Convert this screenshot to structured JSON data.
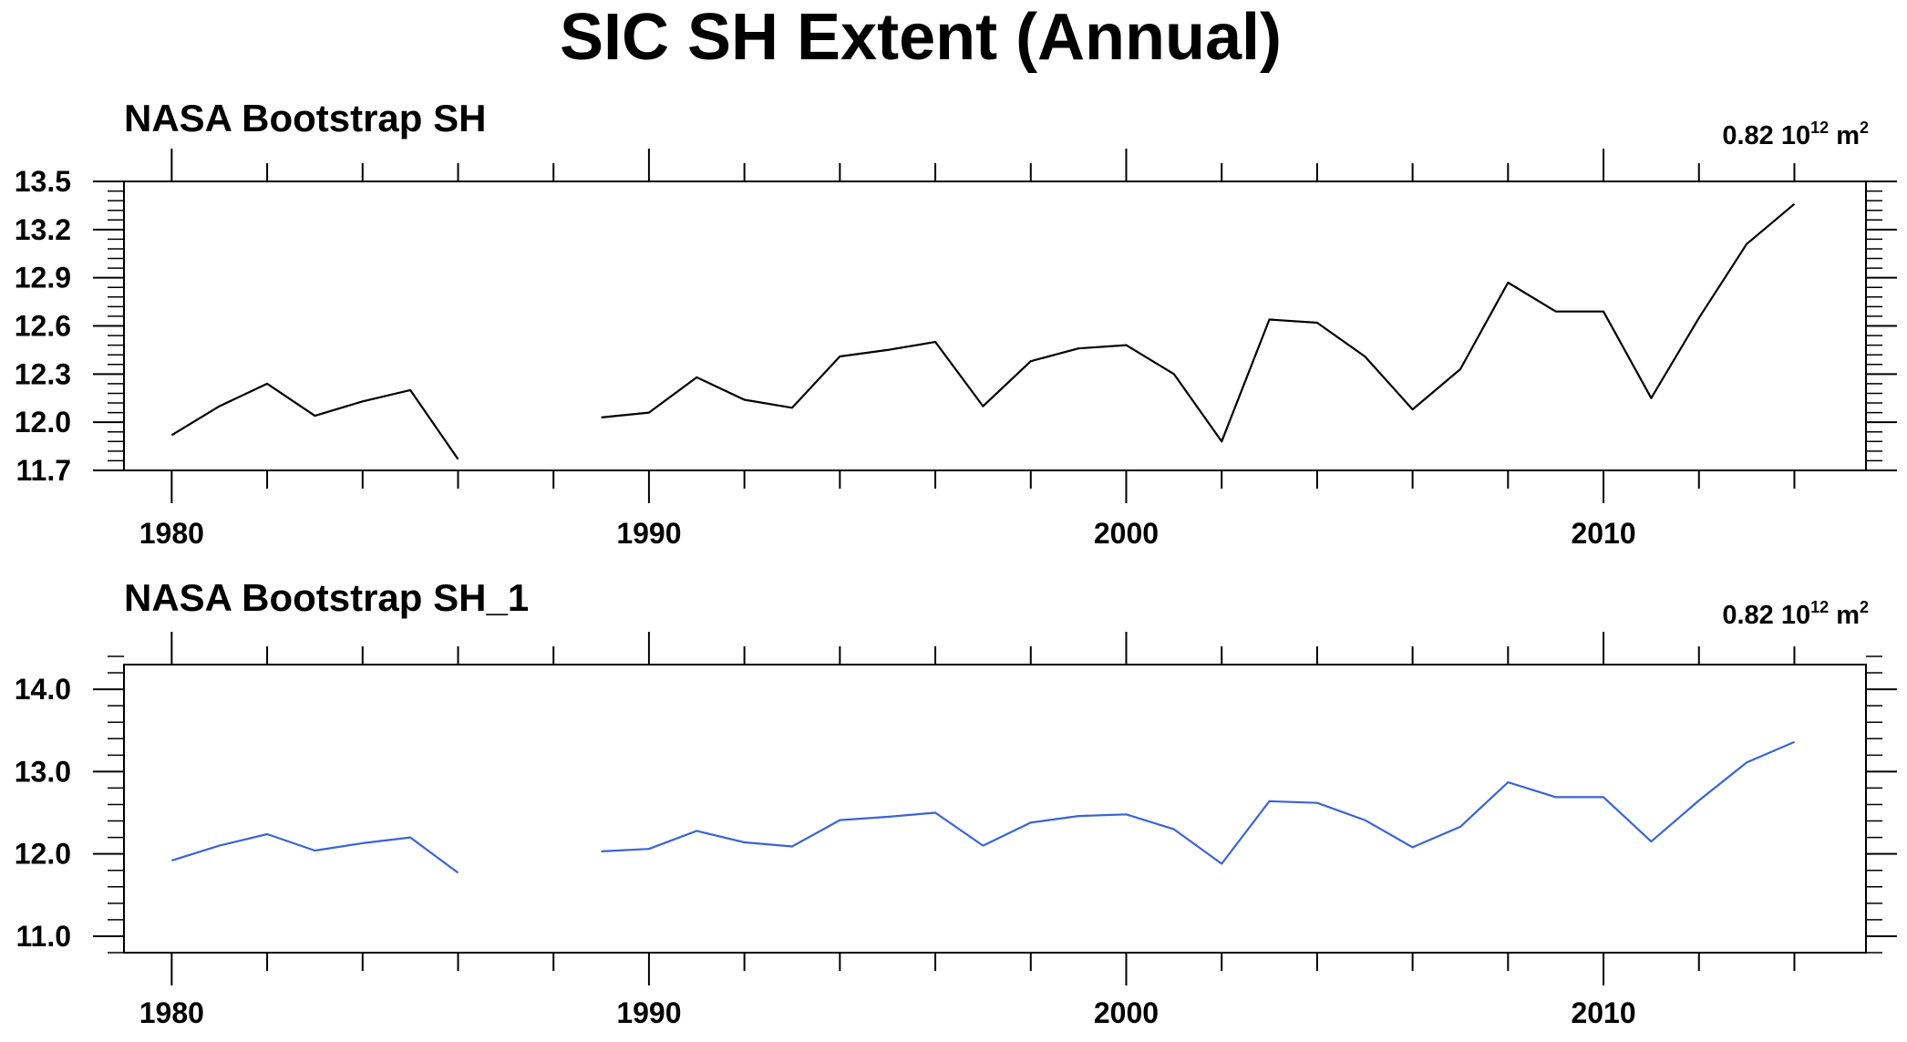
{
  "figure_title": "SIC SH Extent (Annual)",
  "chart_data": [
    {
      "type": "line",
      "title": "NASA Bootstrap SH",
      "stat": {
        "value": "0.82",
        "base": "10",
        "exp": "12",
        "unit": "m",
        "unit_exp": "2"
      },
      "xlim": [
        1979,
        2015.5
      ],
      "ylim": [
        11.7,
        13.5
      ],
      "x_ticks": [
        1980,
        1990,
        2000,
        2010
      ],
      "x_tick_labels": [
        "1980",
        "1990",
        "2000",
        "2010"
      ],
      "y_ticks": [
        11.7,
        12.0,
        12.3,
        12.6,
        12.9,
        13.2,
        13.5
      ],
      "y_tick_labels": [
        "11.7",
        "12.0",
        "12.3",
        "12.6",
        "12.9",
        "13.2",
        "13.5"
      ],
      "y_minor_step": 0.06,
      "color": "#000000",
      "x": [
        1980,
        1981,
        1982,
        1983,
        1984,
        1985,
        1986,
        1987,
        1988,
        1989,
        1990,
        1991,
        1992,
        1993,
        1994,
        1995,
        1996,
        1997,
        1998,
        1999,
        2000,
        2001,
        2002,
        2003,
        2004,
        2005,
        2006,
        2007,
        2008,
        2009,
        2010,
        2011,
        2012,
        2013,
        2014
      ],
      "y": [
        11.92,
        12.1,
        12.24,
        12.04,
        12.13,
        12.2,
        11.77,
        null,
        null,
        12.03,
        12.06,
        12.28,
        12.14,
        12.09,
        12.41,
        12.45,
        12.5,
        12.1,
        12.38,
        12.46,
        12.48,
        12.3,
        11.88,
        12.64,
        12.62,
        12.41,
        12.08,
        12.33,
        12.87,
        12.69,
        12.69,
        12.15,
        12.65,
        13.11,
        13.36
      ]
    },
    {
      "type": "line",
      "title": "NASA Bootstrap SH_1",
      "stat": {
        "value": "0.82",
        "base": "10",
        "exp": "12",
        "unit": "m",
        "unit_exp": "2"
      },
      "xlim": [
        1979,
        2015.5
      ],
      "ylim": [
        10.8,
        14.3
      ],
      "x_ticks": [
        1980,
        1990,
        2000,
        2010
      ],
      "x_tick_labels": [
        "1980",
        "1990",
        "2000",
        "2010"
      ],
      "y_ticks": [
        11.0,
        12.0,
        13.0,
        14.0
      ],
      "y_tick_labels": [
        "11.0",
        "12.0",
        "13.0",
        "14.0"
      ],
      "y_minor_step": 0.2,
      "color": "#3b63d6",
      "x": [
        1980,
        1981,
        1982,
        1983,
        1984,
        1985,
        1986,
        1987,
        1988,
        1989,
        1990,
        1991,
        1992,
        1993,
        1994,
        1995,
        1996,
        1997,
        1998,
        1999,
        2000,
        2001,
        2002,
        2003,
        2004,
        2005,
        2006,
        2007,
        2008,
        2009,
        2010,
        2011,
        2012,
        2013,
        2014
      ],
      "y": [
        11.92,
        12.1,
        12.24,
        12.04,
        12.13,
        12.2,
        11.77,
        null,
        null,
        12.03,
        12.06,
        12.28,
        12.14,
        12.09,
        12.41,
        12.45,
        12.5,
        12.1,
        12.38,
        12.46,
        12.48,
        12.3,
        11.88,
        12.64,
        12.62,
        12.41,
        12.08,
        12.33,
        12.87,
        12.69,
        12.69,
        12.15,
        12.65,
        13.11,
        13.36
      ]
    }
  ]
}
